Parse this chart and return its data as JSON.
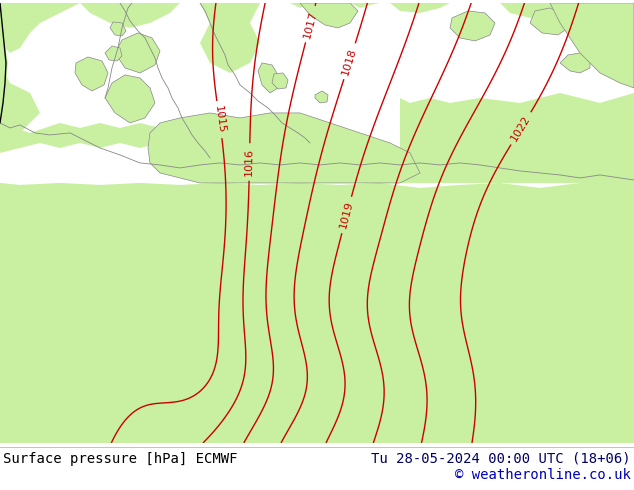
{
  "title_left": "Surface pressure [hPa] ECMWF",
  "title_right": "Tu 28-05-2024 00:00 UTC (18+06)",
  "copyright": "© weatheronline.co.uk",
  "bg_color_land": "#c8f0a0",
  "bg_color_sea": "#d8d8d8",
  "bg_color_bottom": "#ffffff",
  "contour_color": "#cc0000",
  "coast_color": "#888888",
  "text_color_title": "#000000",
  "text_color_right": "#000066",
  "text_color_copyright": "#0000bb",
  "font_size_title": 10,
  "font_size_label": 8
}
